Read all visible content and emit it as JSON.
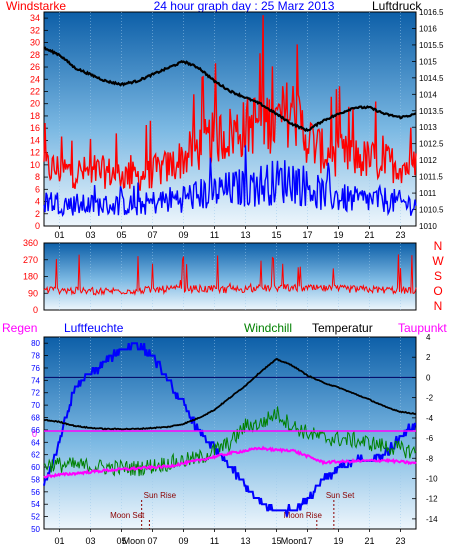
{
  "chart_data": [
    {
      "type": "line",
      "title": "24 hour graph day : 25 Marz 2013",
      "left_label": "Windstarke",
      "right_label": "Luftdruck",
      "x_ticks": [
        "01",
        "03",
        "05",
        "07",
        "09",
        "11",
        "13",
        "15",
        "17",
        "19",
        "21",
        "23"
      ],
      "y_left_ticks": [
        0,
        2,
        4,
        6,
        8,
        10,
        12,
        14,
        16,
        18,
        20,
        22,
        24,
        26,
        28,
        30,
        32,
        34
      ],
      "y_left_range": [
        0,
        35
      ],
      "y_right_ticks": [
        "1010",
        "1010.5",
        "1011",
        "1011.5",
        "1012",
        "1012.5",
        "1013",
        "1013.5",
        "1014",
        "1014.5",
        "1015",
        "1015.5",
        "1016",
        "1016.5"
      ],
      "y_right_range": [
        1010,
        1016.5
      ],
      "series": [
        {
          "key": "gust",
          "color": "#ff0000",
          "hours": [
            0,
            2,
            4,
            6,
            8,
            9,
            10,
            11,
            12,
            13,
            14,
            15,
            16,
            17,
            18,
            20,
            22,
            24
          ],
          "values": [
            12,
            11,
            11,
            10,
            12,
            14,
            16,
            18,
            19,
            20,
            22,
            21,
            24,
            18,
            15,
            14,
            13,
            12
          ]
        },
        {
          "key": "wind",
          "color": "#0000ff",
          "hours": [
            0,
            2,
            4,
            6,
            8,
            10,
            12,
            14,
            16,
            18,
            20,
            22,
            24
          ],
          "values": [
            5,
            4,
            4,
            4,
            5,
            6,
            7,
            8,
            9,
            6,
            5,
            5,
            4
          ]
        },
        {
          "key": "pressure",
          "color": "#000000",
          "hours": [
            0,
            1,
            2,
            3,
            4,
            5,
            6,
            7,
            8,
            9,
            10,
            11,
            12,
            13,
            14,
            15,
            16,
            17,
            18,
            19,
            20,
            21,
            22,
            23,
            24
          ],
          "values": [
            1015.4,
            1015.2,
            1014.8,
            1014.6,
            1014.4,
            1014.3,
            1014.4,
            1014.6,
            1014.8,
            1015.0,
            1014.8,
            1014.4,
            1014.1,
            1013.9,
            1013.7,
            1013.4,
            1013.1,
            1012.9,
            1013.2,
            1013.4,
            1013.6,
            1013.6,
            1013.4,
            1013.3,
            1013.4
          ]
        }
      ]
    },
    {
      "type": "line",
      "title": "",
      "x_ticks": [
        "01",
        "03",
        "05",
        "07",
        "09",
        "11",
        "13",
        "15",
        "17",
        "19",
        "21",
        "23"
      ],
      "y_ticks": [
        0,
        90,
        180,
        270,
        360
      ],
      "y_range": [
        0,
        360
      ],
      "right_letters": [
        "N",
        "W",
        "S",
        "O",
        "N"
      ],
      "series": [
        {
          "key": "direction",
          "color": "#ff0000",
          "hours": [
            0,
            3,
            6,
            9,
            12,
            15,
            18,
            21,
            24
          ],
          "values": [
            110,
            100,
            105,
            115,
            110,
            120,
            115,
            110,
            105
          ]
        }
      ]
    },
    {
      "type": "line",
      "title": "",
      "left_label_1": "Regen",
      "left_label_2": "Luftfeuchte",
      "label_windchill": "Windchill",
      "label_temperatur": "Temperatur",
      "label_taupunkt": "Taupunkt",
      "y_left_ticks": [
        50,
        52,
        54,
        56,
        58,
        60,
        62,
        64,
        66,
        68,
        70,
        72,
        74,
        76,
        78,
        80
      ],
      "y_left_range": [
        50,
        81
      ],
      "y_right_ticks": [
        -14,
        -12,
        -10,
        -8,
        -6,
        -4,
        -2,
        0,
        2,
        4
      ],
      "y_right_range": [
        -15,
        4
      ],
      "rain_marker": "0",
      "x_ticks": [
        "01",
        "03",
        "05",
        "07",
        "09",
        "11",
        "13",
        "15",
        "17",
        "19",
        "21",
        "23"
      ],
      "moon_ticks": [
        "Moon",
        "Moon"
      ],
      "annotations": {
        "sun_rise": "Sun Rise",
        "sun_set": "Sun Set",
        "moon_set": "Moon Set",
        "moon_rise": "Moon Rise"
      },
      "series": [
        {
          "key": "humidity",
          "color": "#0000ff",
          "hours": [
            0,
            1,
            2,
            3,
            4,
            5,
            6,
            7,
            8,
            9,
            10,
            11,
            12,
            13,
            14,
            15,
            16,
            17,
            18,
            19,
            20,
            21,
            22,
            23,
            24
          ],
          "values": [
            57,
            64,
            73,
            75,
            77,
            79,
            80,
            78,
            74,
            70,
            66,
            63,
            60,
            57,
            54,
            53,
            53,
            55,
            58,
            60,
            61,
            61,
            62,
            65,
            67
          ]
        },
        {
          "key": "temperatur",
          "color": "#000000",
          "hours": [
            0,
            1,
            2,
            3,
            4,
            5,
            6,
            7,
            8,
            9,
            10,
            11,
            12,
            13,
            14,
            15,
            16,
            17,
            18,
            19,
            20,
            21,
            22,
            23,
            24
          ],
          "values": [
            -4.2,
            -4.4,
            -4.8,
            -5.0,
            -5.1,
            -5.1,
            -5.1,
            -5.0,
            -4.9,
            -4.6,
            -4.0,
            -3.2,
            -2.0,
            -0.8,
            0.6,
            1.8,
            1.2,
            0.2,
            -0.5,
            -1.0,
            -1.6,
            -2.2,
            -2.9,
            -3.4,
            -3.6
          ]
        },
        {
          "key": "windchill",
          "color": "#008000",
          "hours": [
            0,
            2,
            4,
            6,
            8,
            10,
            12,
            13,
            14,
            15,
            16,
            17,
            18,
            20,
            22,
            24
          ],
          "values": [
            -8.6,
            -8.7,
            -8.9,
            -9.0,
            -8.5,
            -8.0,
            -6.5,
            -4.8,
            -4.6,
            -3.5,
            -4.8,
            -5.5,
            -6.0,
            -6.2,
            -6.8,
            -7.4
          ]
        },
        {
          "key": "taupunkt",
          "color": "#ff00ff",
          "hours": [
            0,
            2,
            4,
            6,
            8,
            10,
            12,
            14,
            15,
            16,
            17,
            18,
            20,
            22,
            24
          ],
          "values": [
            -9.8,
            -9.5,
            -9.2,
            -9.0,
            -8.8,
            -8.2,
            -7.5,
            -7.0,
            -7.2,
            -7.2,
            -7.8,
            -8.4,
            -8.3,
            -8.2,
            -8.5
          ]
        }
      ]
    }
  ]
}
